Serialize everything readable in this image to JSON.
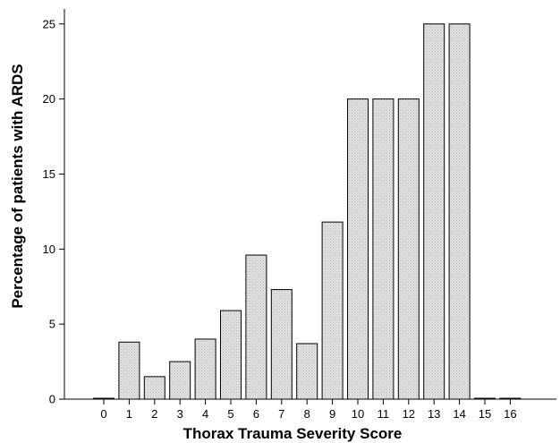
{
  "chart_data": {
    "type": "bar",
    "title": "",
    "xlabel": "Thorax Trauma Severity Score",
    "ylabel": "Percentage of patients with ARDS",
    "categories": [
      "0",
      "1",
      "2",
      "3",
      "4",
      "5",
      "6",
      "7",
      "8",
      "9",
      "10",
      "11",
      "12",
      "13",
      "14",
      "15",
      "16"
    ],
    "values": [
      0,
      3.8,
      1.5,
      2.5,
      4.0,
      5.9,
      9.6,
      7.3,
      3.7,
      11.8,
      20.0,
      20.0,
      20.0,
      25.0,
      25.0,
      0,
      0
    ],
    "ylim": [
      0,
      26
    ],
    "yticks": [
      0,
      5,
      10,
      15,
      20,
      25
    ],
    "grid": false,
    "legend": "none",
    "colors": {
      "bar_fill": "#dcdcdc",
      "bar_stroke": "#000000",
      "axis": "#000000"
    }
  }
}
